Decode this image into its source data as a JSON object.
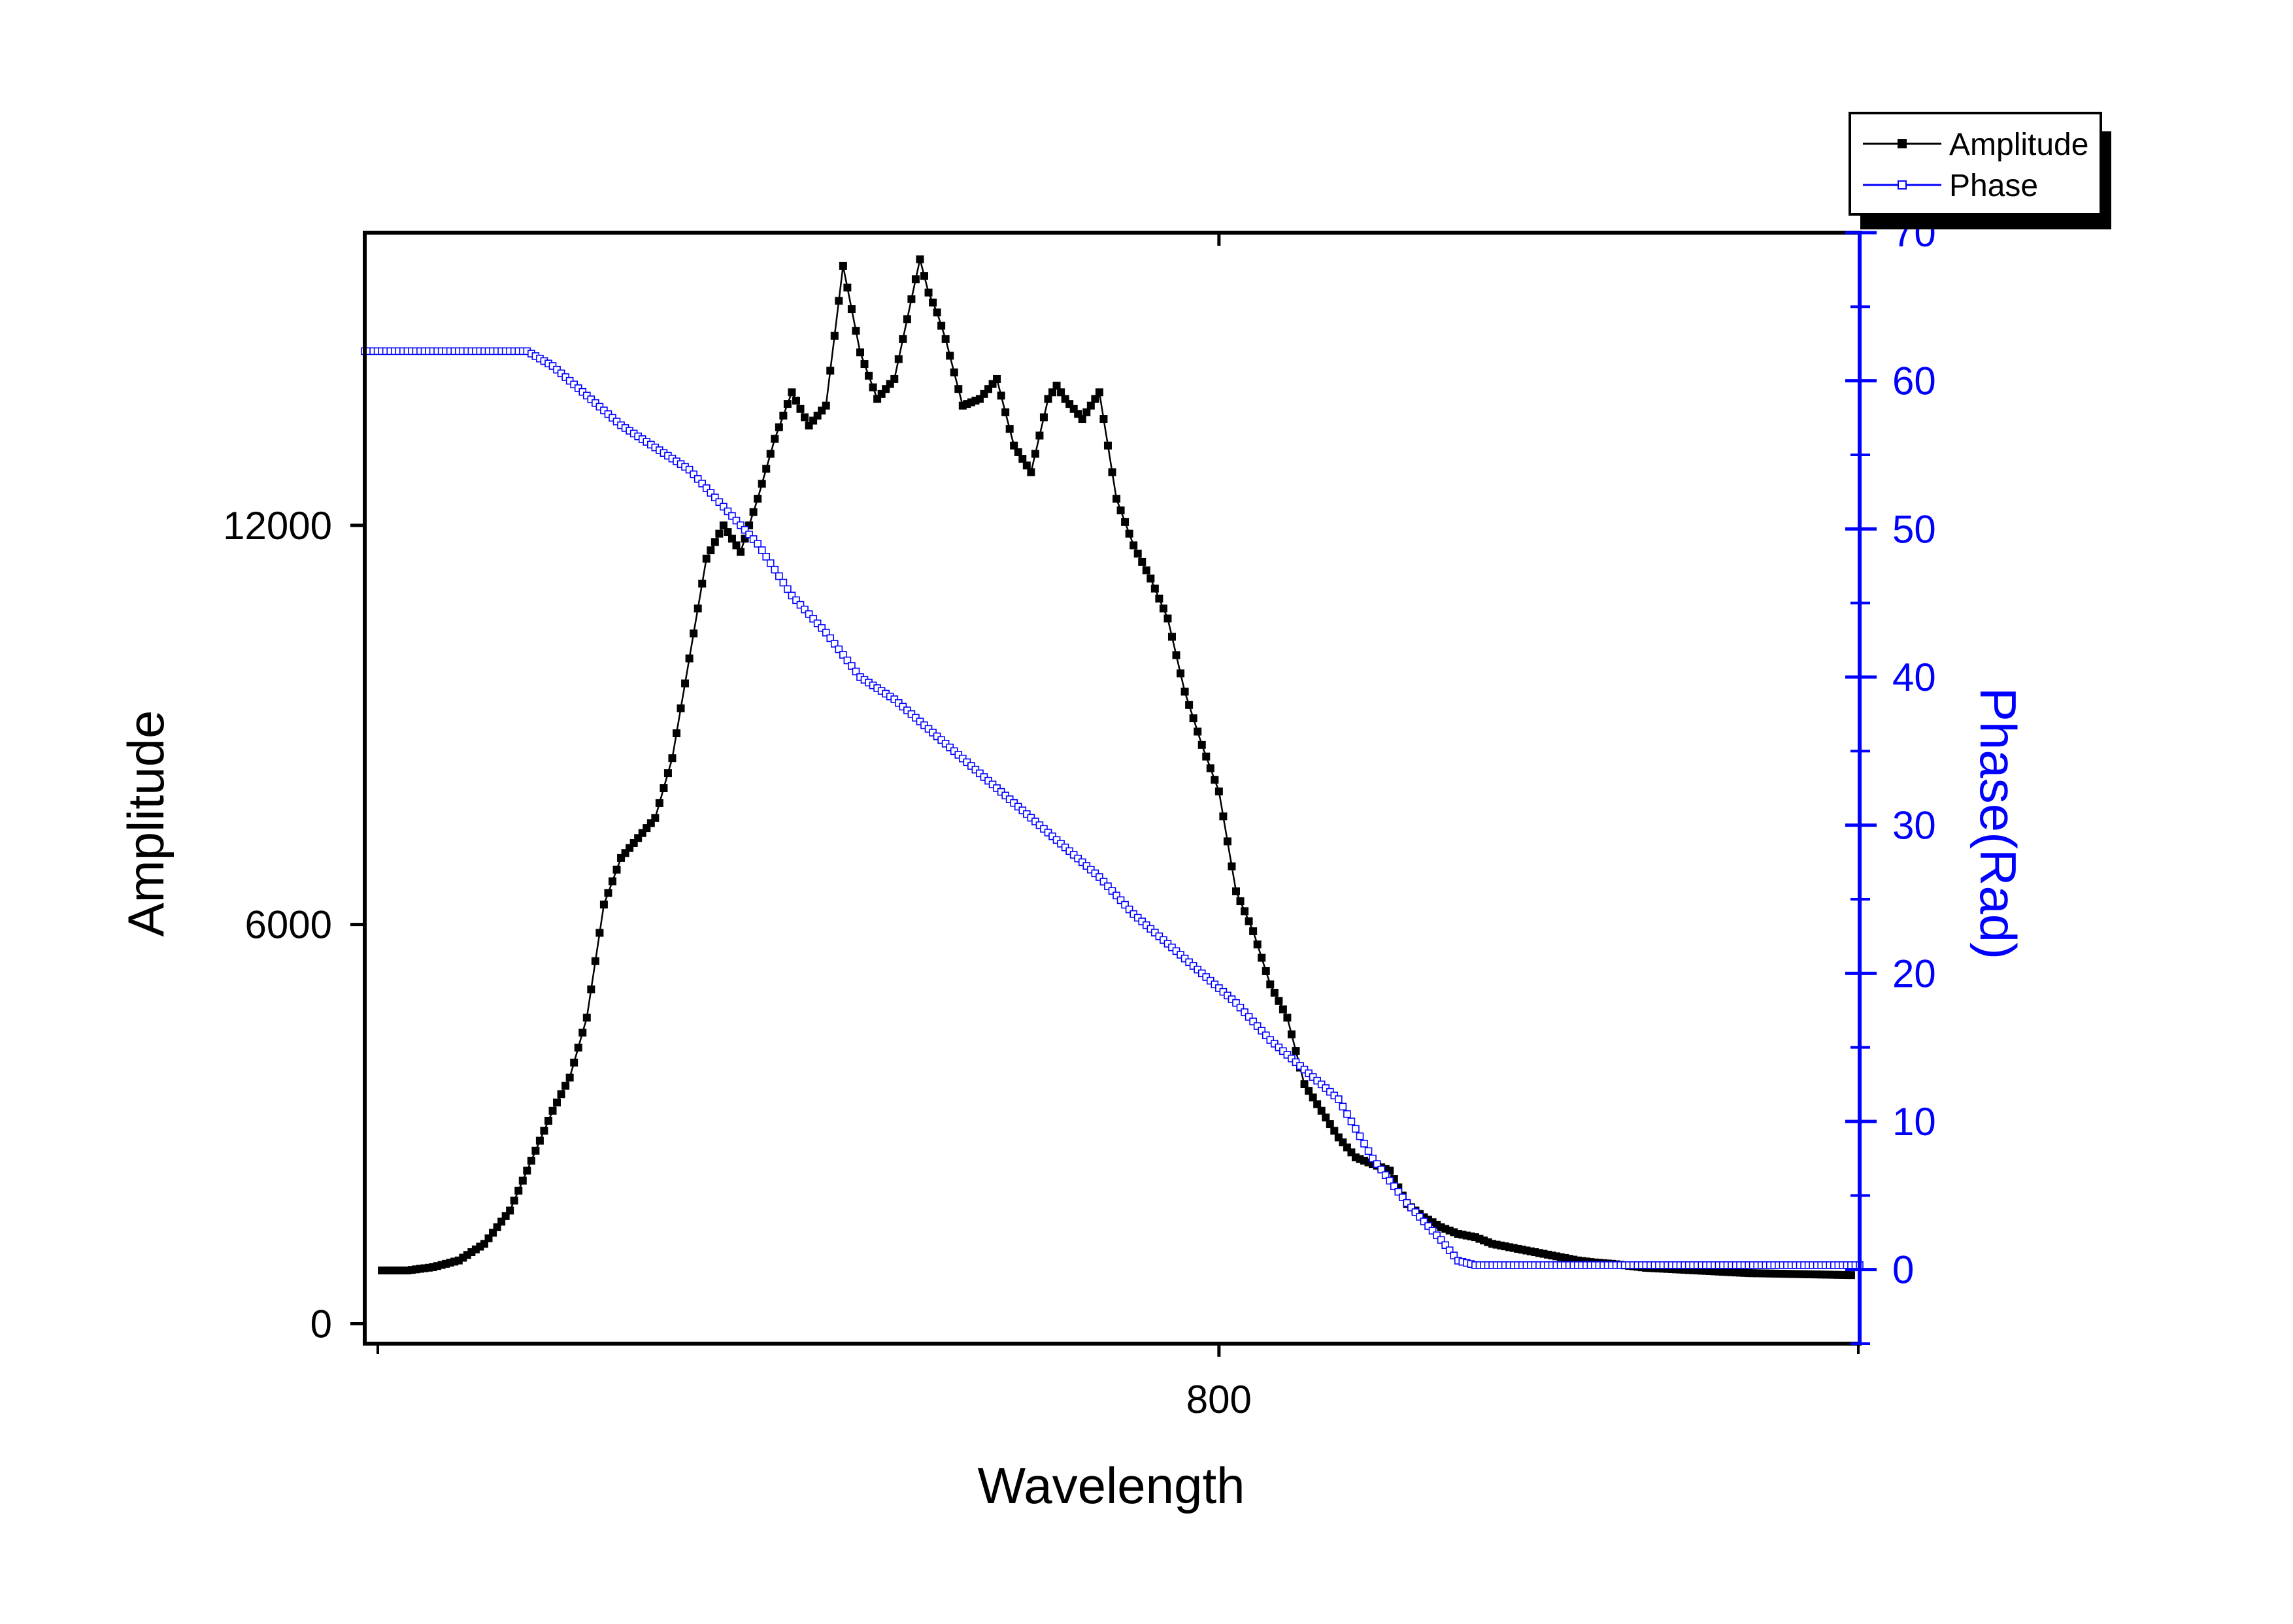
{
  "chart_data": {
    "type": "line",
    "title": "",
    "xlabel": "Wavelength",
    "ylabel": "Amplitude",
    "y2label": "Phase(Rad)",
    "xlim": [
      700,
      875
    ],
    "ylim": [
      -300,
      16400
    ],
    "y2lim": [
      -5,
      70
    ],
    "x_ticks": [
      800
    ],
    "x_tick_labels": [
      "800"
    ],
    "y_ticks": [
      0,
      6000,
      12000
    ],
    "y_tick_labels": [
      "0",
      "6000",
      "12000"
    ],
    "y2_ticks": [
      0,
      10,
      20,
      30,
      40,
      50,
      60,
      70
    ],
    "y2_tick_labels": [
      "0",
      "10",
      "20",
      "30",
      "40",
      "50",
      "60",
      "70"
    ],
    "grid": false,
    "legend": "top-right, outside the plot",
    "colors": {
      "amplitude": "#000000",
      "phase": "#0000ff",
      "axis_right": "#0000ff"
    },
    "series": [
      {
        "name": "Amplitude",
        "axis": "left",
        "marker": "filled-square",
        "x": [
          702,
          705,
          708,
          711,
          714,
          717,
          720,
          722,
          724,
          726,
          728,
          730,
          732,
          734,
          736,
          738,
          740,
          742,
          744,
          746,
          748,
          750,
          752,
          754,
          756,
          758,
          760,
          762,
          764,
          765,
          766,
          767,
          768,
          770,
          772,
          774,
          776,
          778,
          780,
          781,
          782,
          784,
          786,
          788,
          790,
          792,
          794,
          796,
          798,
          800,
          802,
          804,
          806,
          808,
          810,
          812,
          814,
          816,
          818,
          820,
          822,
          824,
          826,
          828,
          830,
          832,
          834,
          836,
          838,
          840,
          842,
          844,
          846,
          848,
          850,
          853,
          856,
          859,
          862,
          866,
          870,
          874
        ],
        "y": [
          800,
          800,
          850,
          950,
          1200,
          1700,
          2600,
          3200,
          3700,
          4600,
          6300,
          7000,
          7300,
          7600,
          8500,
          10000,
          11500,
          12000,
          11600,
          12400,
          13300,
          14000,
          13500,
          13800,
          15900,
          14600,
          13900,
          14200,
          15400,
          16000,
          15500,
          15200,
          14800,
          13800,
          13900,
          14200,
          13200,
          12800,
          13900,
          14100,
          13900,
          13600,
          14000,
          12400,
          11700,
          11200,
          10600,
          9500,
          8700,
          8000,
          6500,
          5900,
          5100,
          4600,
          3600,
          3200,
          2800,
          2500,
          2400,
          2300,
          1800,
          1600,
          1450,
          1350,
          1300,
          1200,
          1150,
          1100,
          1050,
          1000,
          950,
          920,
          900,
          870,
          840,
          820,
          800,
          780,
          760,
          750,
          740,
          730
        ]
      },
      {
        "name": "Phase",
        "axis": "right",
        "marker": "open-square",
        "x": [
          700,
          719,
          722,
          726,
          730,
          734,
          738,
          742,
          746,
          750,
          754,
          758,
          762,
          766,
          770,
          774,
          778,
          782,
          786,
          790,
          794,
          798,
          802,
          806,
          810,
          814,
          818,
          822,
          826,
          828,
          830,
          834,
          838,
          842,
          846,
          850,
          855,
          860,
          865,
          870,
          875
        ],
        "y": [
          62,
          62,
          61,
          59,
          57,
          55.5,
          54,
          51.5,
          49,
          45.5,
          43,
          40,
          38.5,
          36.5,
          34.5,
          32.5,
          30.5,
          28.5,
          26.5,
          24,
          22,
          20,
          18,
          15.5,
          13.5,
          11.5,
          7.5,
          4.5,
          2,
          0.6,
          0.3,
          0.3,
          0.3,
          0.3,
          0.3,
          0.3,
          0.3,
          0.3,
          0.3,
          0.3,
          0.3
        ]
      }
    ]
  }
}
